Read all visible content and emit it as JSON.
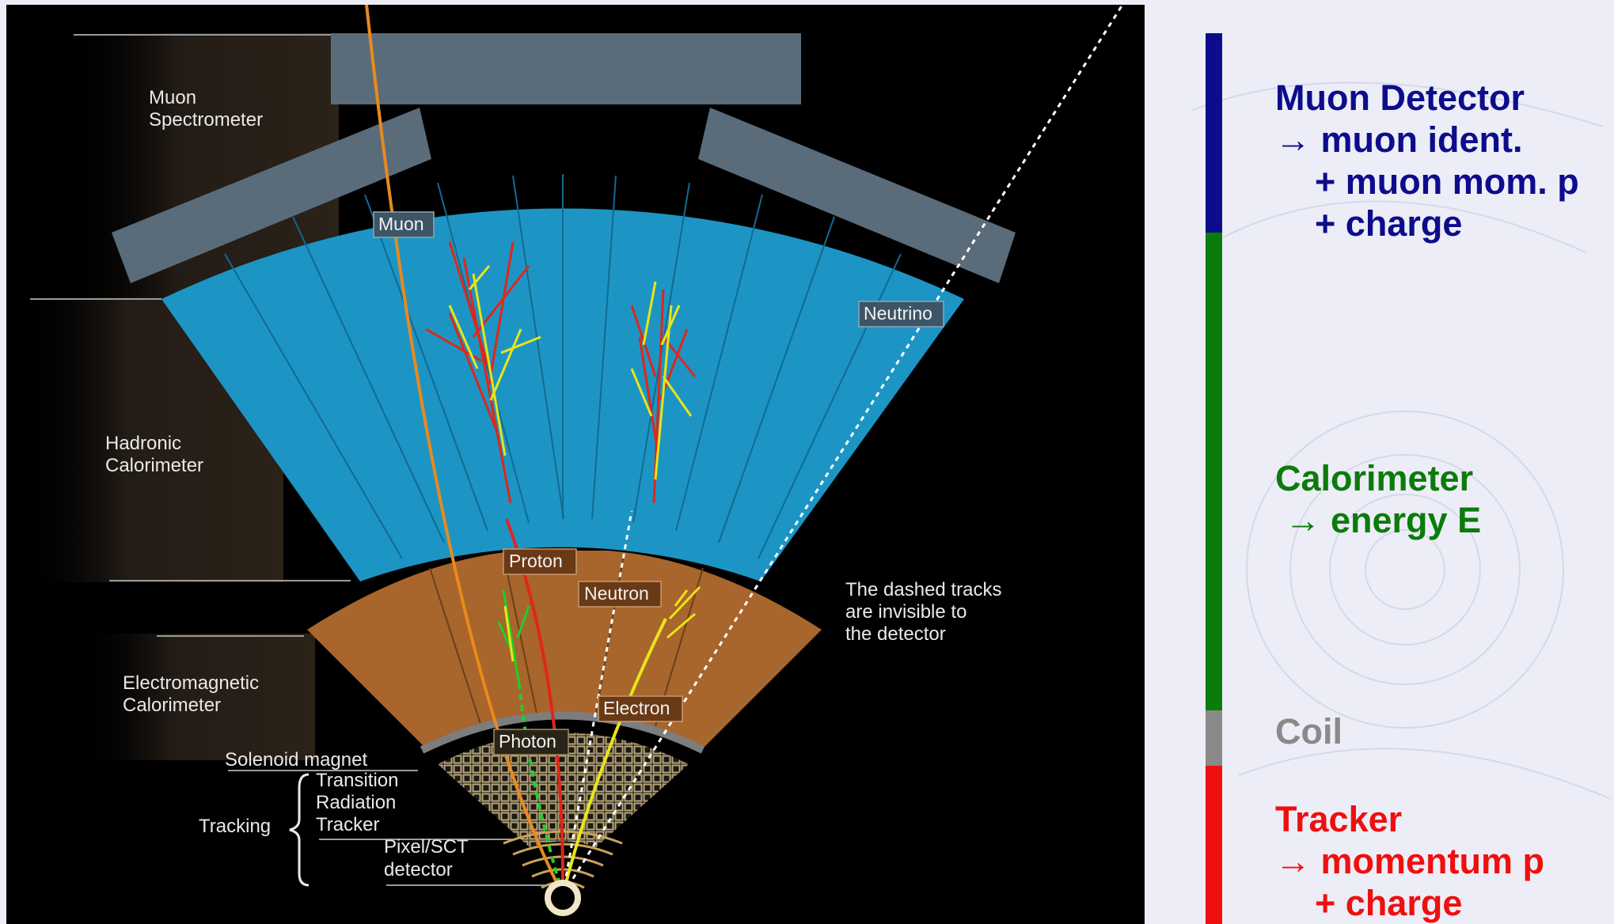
{
  "detector_labels": {
    "muon_spectrometer": [
      "Muon",
      "Spectrometer"
    ],
    "hadronic_calorimeter": [
      "Hadronic",
      "Calorimeter"
    ],
    "em_calorimeter": [
      "Electromagnetic",
      "Calorimeter"
    ],
    "solenoid_magnet": "Solenoid magnet",
    "trt": [
      "Transition",
      "Radiation",
      "Tracker"
    ],
    "tracking": "Tracking",
    "pixel_sct": [
      "Pixel/SCT",
      "detector"
    ]
  },
  "particles": {
    "muon": "Muon",
    "neutrino": "Neutrino",
    "proton": "Proton",
    "neutron": "Neutron",
    "electron": "Electron",
    "photon": "Photon"
  },
  "note": [
    "The dashed tracks",
    "are invisible to",
    "the detector"
  ],
  "legend": {
    "muon": {
      "lines": [
        "Muon Detector",
        "→ muon ident.",
        "    + muon mom. p",
        "    + charge"
      ],
      "color": "#0c0c8c"
    },
    "calorimeter": {
      "lines": [
        "Calorimeter",
        " → energy E"
      ],
      "color": "#0b7b0b"
    },
    "coil": {
      "lines": [
        "Coil"
      ],
      "color": "#8a8a8a"
    },
    "tracker": {
      "lines": [
        "Tracker",
        "→ momentum p",
        "    + charge"
      ],
      "color": "#ef0f0f"
    }
  },
  "colors": {
    "hadronic": "#1c95c4",
    "em": "#a8652c",
    "muon_chamber": "#5a6b7a",
    "muon_track": "#e88a1e",
    "proton_track": "#e0261a",
    "electron_track": "#e9e418",
    "photon_track": "#1ecf2a"
  }
}
